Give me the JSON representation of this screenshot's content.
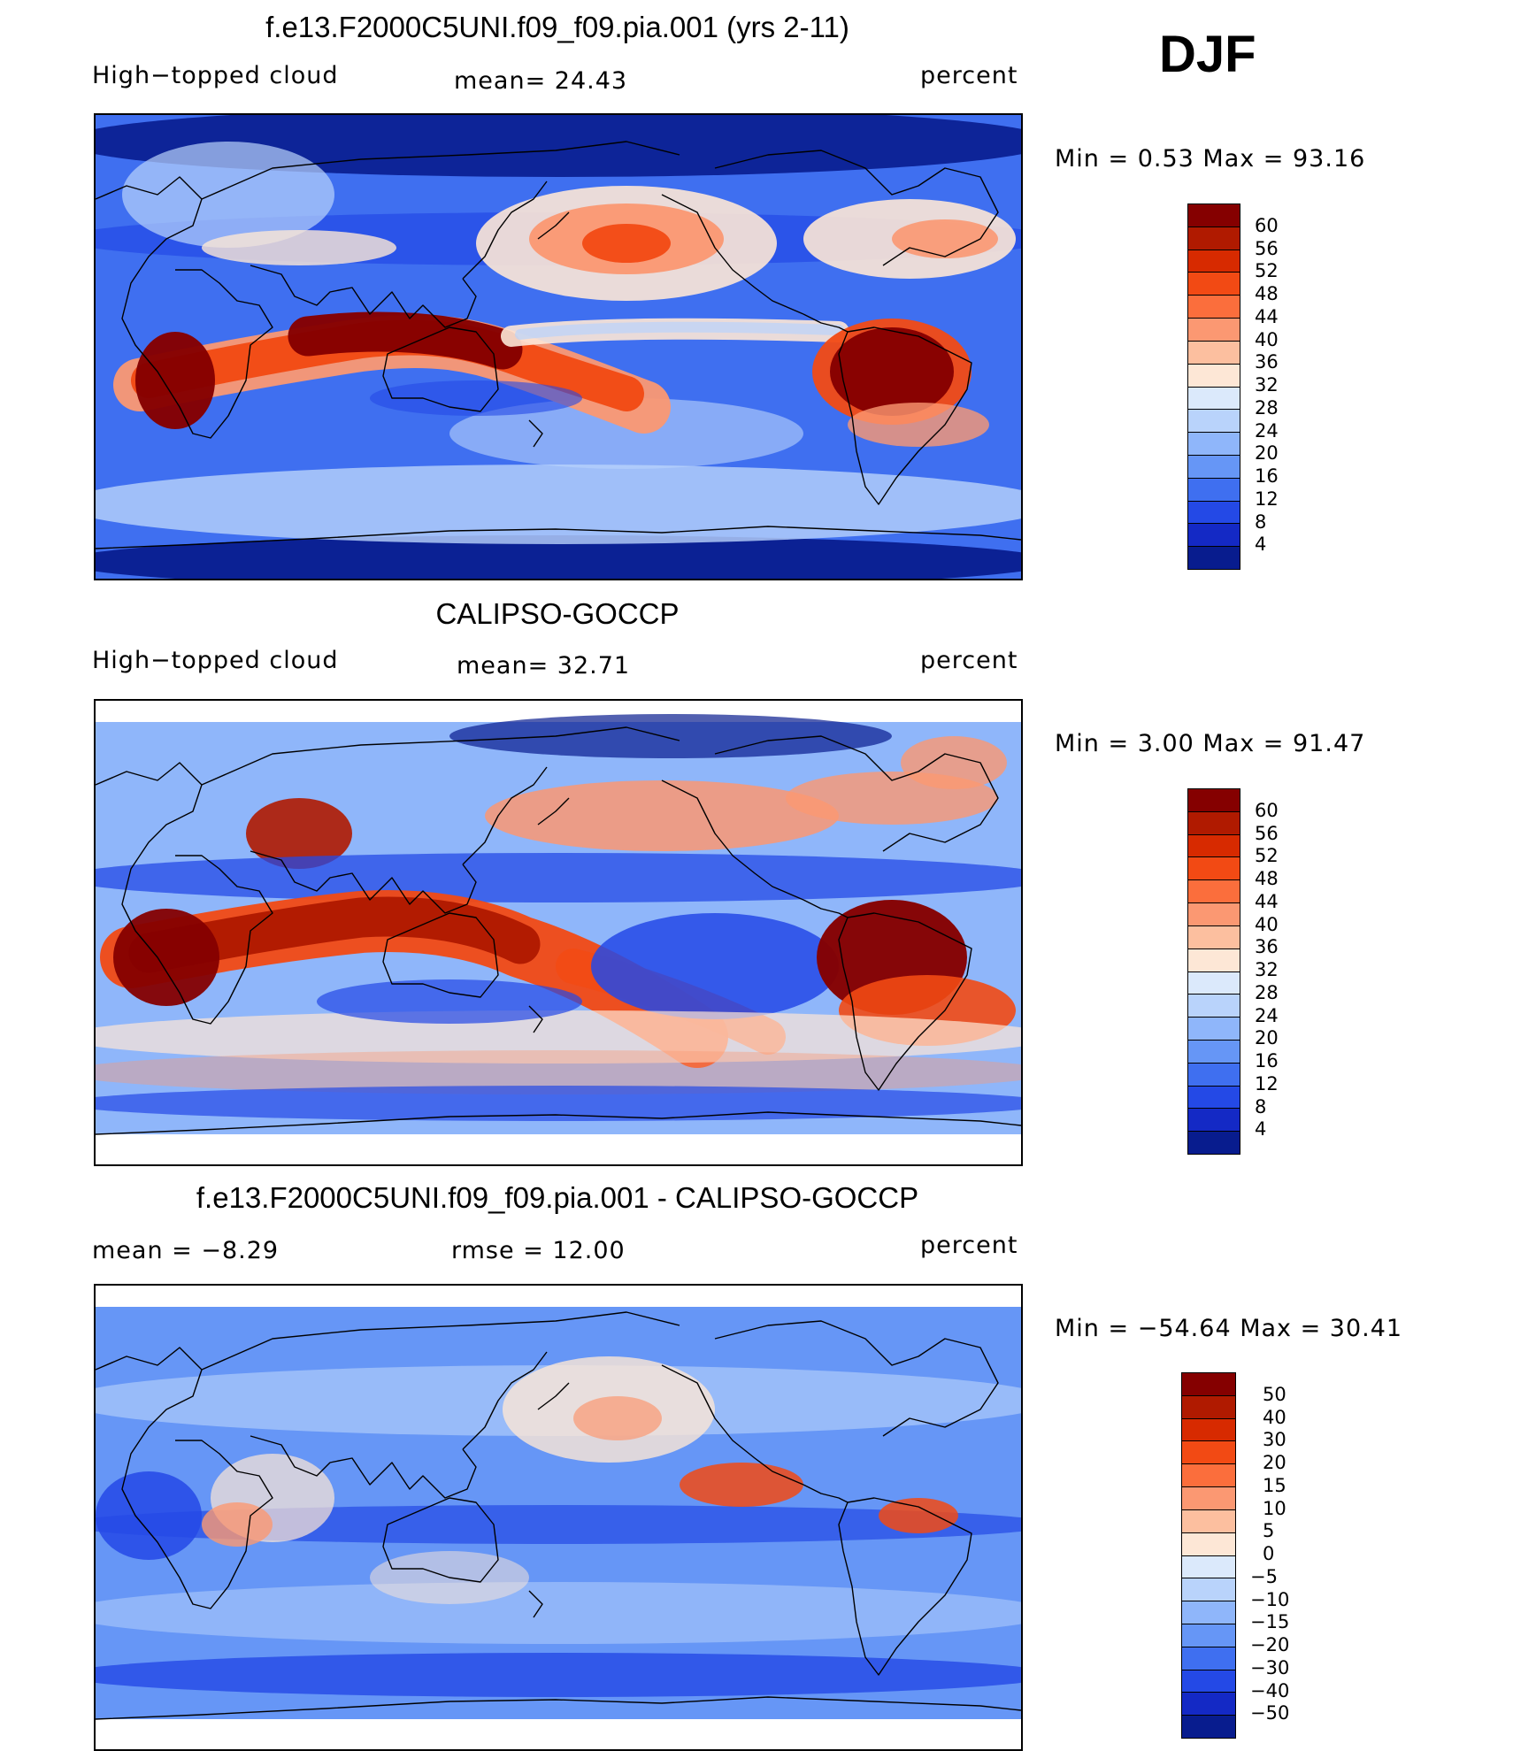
{
  "season": "DJF",
  "panels": [
    {
      "id": "model",
      "title": "f.e13.F2000C5UNI.f09_f09.pia.001 (yrs 2-11)",
      "left_label": "High−topped cloud",
      "mid_label": "mean=   24.43",
      "units": "percent",
      "minmax": "Min  =     0.53  Max  =     93.16",
      "palette": "sequential"
    },
    {
      "id": "obs",
      "title": "CALIPSO-GOCCP",
      "left_label": "High−topped cloud",
      "mid_label": "mean=   32.71",
      "units": "percent",
      "minmax": "Min  =     3.00  Max  =     91.47",
      "palette": "sequential"
    },
    {
      "id": "diff",
      "title": "f.e13.F2000C5UNI.f09_f09.pia.001 - CALIPSO-GOCCP",
      "left_label": "mean  =    −8.29",
      "mid_label": "rmse  =    12.00",
      "units": "percent",
      "minmax": "Min  = −54.64  Max  =    30.41",
      "palette": "difference"
    }
  ],
  "chart_data": [
    {
      "type": "heatmap",
      "title": "f.e13.F2000C5UNI.f09_f09.pia.001 (yrs 2-11)",
      "variable": "High−topped cloud",
      "units": "percent",
      "mean": 24.43,
      "min": 0.53,
      "max": 93.16,
      "colorbar_levels": [
        60,
        56,
        52,
        48,
        44,
        40,
        36,
        32,
        28,
        24,
        20,
        16,
        12,
        8,
        4
      ],
      "colorbar_colors": [
        "#850000",
        "#b01a00",
        "#d72a00",
        "#f24a14",
        "#fb6e3c",
        "#fb9872",
        "#fcbf9f",
        "#fde7d6",
        "#dbe9fb",
        "#b9d3fb",
        "#8fb6fa",
        "#6696f6",
        "#3f6ff0",
        "#2449e6",
        "#1429c5",
        "#081c8e"
      ]
    },
    {
      "type": "heatmap",
      "title": "CALIPSO-GOCCP",
      "variable": "High−topped cloud",
      "units": "percent",
      "mean": 32.71,
      "min": 3.0,
      "max": 91.47,
      "colorbar_levels": [
        60,
        56,
        52,
        48,
        44,
        40,
        36,
        32,
        28,
        24,
        20,
        16,
        12,
        8,
        4
      ],
      "colorbar_colors": [
        "#850000",
        "#b01a00",
        "#d72a00",
        "#f24a14",
        "#fb6e3c",
        "#fb9872",
        "#fcbf9f",
        "#fde7d6",
        "#dbe9fb",
        "#b9d3fb",
        "#8fb6fa",
        "#6696f6",
        "#3f6ff0",
        "#2449e6",
        "#1429c5",
        "#081c8e"
      ]
    },
    {
      "type": "heatmap",
      "title": "f.e13.F2000C5UNI.f09_f09.pia.001 - CALIPSO-GOCCP",
      "units": "percent",
      "mean": -8.29,
      "rmse": 12.0,
      "min": -54.64,
      "max": 30.41,
      "colorbar_levels": [
        50,
        40,
        30,
        20,
        15,
        10,
        5,
        0,
        -5,
        -10,
        -15,
        -20,
        -30,
        -40,
        -50
      ],
      "colorbar_labels": [
        "50",
        "40",
        "30",
        "20",
        "15",
        "10",
        "5",
        "0",
        "−5",
        "−10",
        "−15",
        "−20",
        "−30",
        "−40",
        "−50"
      ],
      "colorbar_colors": [
        "#850000",
        "#b01a00",
        "#d72a00",
        "#f24a14",
        "#fb6e3c",
        "#fb9872",
        "#fcbf9f",
        "#fde7d6",
        "#dbe9fb",
        "#b9d3fb",
        "#8fb6fa",
        "#6696f6",
        "#3f6ff0",
        "#2449e6",
        "#1429c5",
        "#081c8e"
      ]
    }
  ]
}
